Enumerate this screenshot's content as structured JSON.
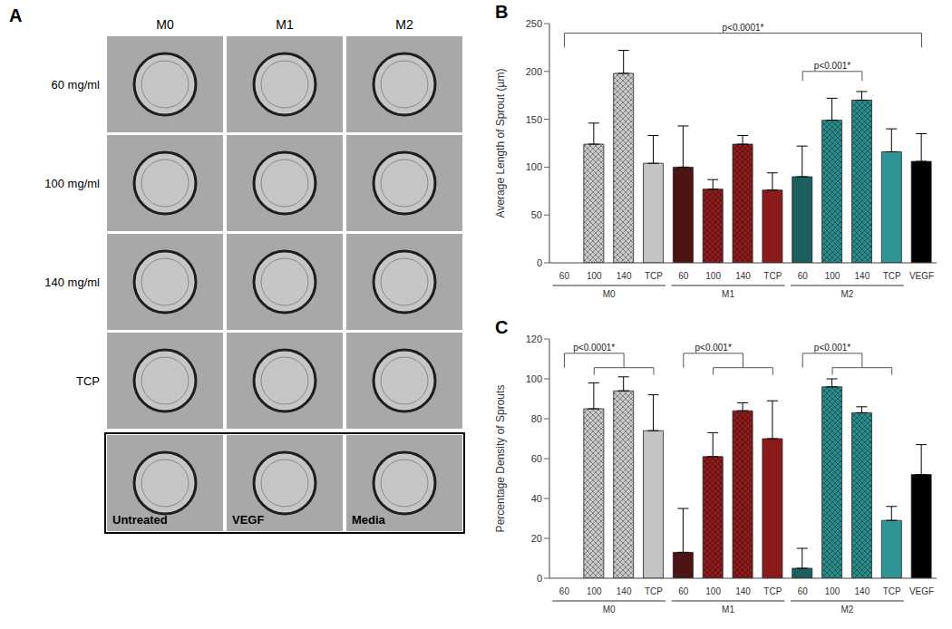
{
  "panel_a": {
    "label": "A",
    "columns": [
      "M0",
      "M1",
      "M2"
    ],
    "rows": [
      "60 mg/ml",
      "100 mg/ml",
      "140 mg/ml",
      "TCP"
    ],
    "controls": [
      "Untreated",
      "VEGF",
      "Media"
    ]
  },
  "chart_data": [
    {
      "type": "bar",
      "title": "B",
      "y_label": "Average Length of Sprout (µm)",
      "categories": [
        "60",
        "100",
        "140",
        "TCP",
        "60",
        "100",
        "140",
        "TCP",
        "60",
        "100",
        "140",
        "TCP",
        "VEGF"
      ],
      "category_groups": [
        "M0",
        "M0",
        "M0",
        "M0",
        "M1",
        "M1",
        "M1",
        "M1",
        "M2",
        "M2",
        "M2",
        "M2",
        null
      ],
      "values": [
        0,
        124,
        198,
        104,
        100,
        77,
        124,
        76,
        90,
        149,
        170,
        116,
        106
      ],
      "errors": [
        0,
        22,
        24,
        29,
        43,
        10,
        9,
        18,
        32,
        23,
        9,
        24,
        29
      ],
      "colors": [
        "#c9c9c9",
        "#c9c9c9",
        "#c9c9c9",
        "#c4c4c4",
        "#4d1414",
        "#8c1c1c",
        "#8c1c1c",
        "#8b1a1a",
        "#1d5e5e",
        "#2b8c8c",
        "#2b8c8c",
        "#2e9696",
        "#000000"
      ],
      "ylim": [
        0,
        250
      ],
      "yticks": [
        0,
        50,
        100,
        150,
        200,
        250
      ],
      "annotations": [
        "p<0.0001*",
        "p<0.001*"
      ]
    },
    {
      "type": "bar",
      "title": "C",
      "y_label": "Percentage Density of Sprouts",
      "categories": [
        "60",
        "100",
        "140",
        "TCP",
        "60",
        "100",
        "140",
        "TCP",
        "60",
        "100",
        "140",
        "TCP",
        "VEGF"
      ],
      "category_groups": [
        "M0",
        "M0",
        "M0",
        "M0",
        "M1",
        "M1",
        "M1",
        "M1",
        "M2",
        "M2",
        "M2",
        "M2",
        null
      ],
      "values": [
        0,
        85,
        94,
        74,
        13,
        61,
        84,
        70,
        5,
        96,
        83,
        29,
        52
      ],
      "errors": [
        0,
        13,
        7,
        18,
        22,
        12,
        4,
        19,
        10,
        4,
        3,
        7,
        15
      ],
      "colors": [
        "#c9c9c9",
        "#c9c9c9",
        "#c9c9c9",
        "#c4c4c4",
        "#4d1414",
        "#8c1c1c",
        "#8c1c1c",
        "#8b1a1a",
        "#1d5e5e",
        "#2b8c8c",
        "#2b8c8c",
        "#2e9696",
        "#000000"
      ],
      "ylim": [
        0,
        120
      ],
      "yticks": [
        0,
        20,
        40,
        60,
        80,
        100,
        120
      ],
      "annotations": [
        "p<0.0001*",
        "p<0.001*",
        "p<0.001*"
      ]
    }
  ]
}
